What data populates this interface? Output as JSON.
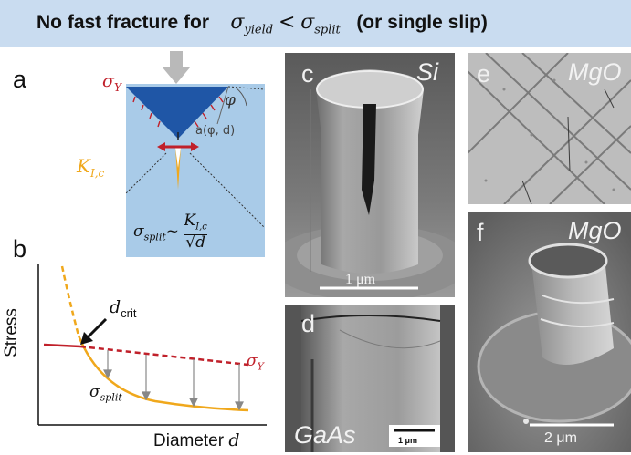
{
  "banner": {
    "prefix": "No fast fracture for",
    "sigma": "σ",
    "sub_yield": "yield",
    "lt": "<",
    "sub_split": "split",
    "suffix": "(or single slip)"
  },
  "panels": {
    "a": {
      "letter": "a",
      "sigma_y": "σ",
      "sigma_y_sub": "Y",
      "phi": "φ",
      "a_expr": "a(φ, d)",
      "k": "K",
      "k_sub": "I,c",
      "formula_lhs": "σ",
      "formula_lhs_sub": "split",
      "tilde": "~",
      "num": "K",
      "num_sub": "I,c",
      "den": "√d"
    },
    "b": {
      "letter": "b",
      "ylabel": "Stress",
      "xlabel": "Diameter",
      "xlabel_var": "d",
      "dcrit": "d",
      "dcrit_sub": "crit",
      "sigma_y": "σ",
      "sigma_y_sub": "Y",
      "sigma_split": "σ",
      "sigma_split_sub": "split"
    },
    "c": {
      "letter": "c",
      "material": "Si",
      "scale": "1 μm"
    },
    "d": {
      "letter": "d",
      "material": "GaAs",
      "scale": "1 μm"
    },
    "e": {
      "letter": "e",
      "material": "MgO"
    },
    "f": {
      "letter": "f",
      "material": "MgO",
      "scale": "2 μm"
    }
  },
  "colors": {
    "banner": "#c9dcf0",
    "sigmaY": "#c0202a",
    "split": "#f0a81c",
    "wedge": "#1f56a6",
    "box": "#a9cbe8"
  }
}
